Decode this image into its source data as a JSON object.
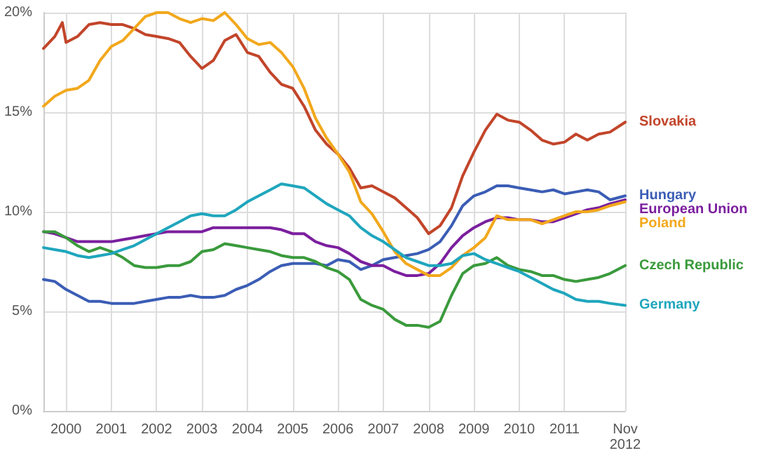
{
  "chart_data": {
    "type": "line",
    "x": [
      "2000-01",
      "2000-04",
      "2000-07",
      "2000-10",
      "2001-01",
      "2001-04",
      "2001-07",
      "2001-10",
      "2002-01",
      "2002-04",
      "2002-07",
      "2002-10",
      "2003-01",
      "2003-04",
      "2003-07",
      "2003-10",
      "2004-01",
      "2004-04",
      "2004-07",
      "2004-10",
      "2005-01",
      "2005-04",
      "2005-07",
      "2005-10",
      "2006-01",
      "2006-04",
      "2006-07",
      "2006-10",
      "2007-01",
      "2007-04",
      "2007-07",
      "2007-10",
      "2008-01",
      "2008-04",
      "2008-07",
      "2008-10",
      "2009-01",
      "2009-04",
      "2009-07",
      "2009-10",
      "2010-01",
      "2010-04",
      "2010-07",
      "2010-10",
      "2011-01",
      "2011-04",
      "2011-07",
      "2011-10",
      "2012-01",
      "2012-04",
      "2012-07",
      "2012-11"
    ],
    "series": [
      {
        "name": "Slovakia",
        "color": "#c2452a",
        "x": [
          "2000-01",
          "2000-04",
          "2000-06",
          "2000-07",
          "2000-10",
          "2001-01",
          "2001-04",
          "2001-07",
          "2001-10",
          "2002-01",
          "2002-04",
          "2002-07",
          "2002-10",
          "2003-01",
          "2003-04",
          "2003-07",
          "2003-10",
          "2004-01",
          "2004-04",
          "2004-07",
          "2004-10",
          "2005-01",
          "2005-04",
          "2005-07",
          "2005-10",
          "2006-01",
          "2006-04",
          "2006-07",
          "2006-10",
          "2007-01",
          "2007-04",
          "2007-07",
          "2007-10",
          "2008-01",
          "2008-04",
          "2008-07",
          "2008-10",
          "2009-01",
          "2009-04",
          "2009-07",
          "2009-10",
          "2010-01",
          "2010-04",
          "2010-07",
          "2010-10",
          "2011-01",
          "2011-04",
          "2011-07",
          "2011-10",
          "2012-01",
          "2012-04",
          "2012-07",
          "2012-11"
        ],
        "values": [
          18.2,
          18.8,
          19.5,
          18.5,
          18.8,
          19.4,
          19.5,
          19.4,
          19.4,
          19.2,
          18.9,
          18.8,
          18.7,
          18.5,
          17.8,
          17.2,
          17.6,
          18.6,
          18.9,
          18.0,
          17.8,
          17.0,
          16.4,
          16.2,
          15.3,
          14.1,
          13.4,
          12.9,
          12.2,
          11.2,
          11.3,
          11.0,
          10.7,
          10.2,
          9.7,
          8.9,
          9.3,
          10.2,
          11.8,
          13.0,
          14.1,
          14.9,
          14.6,
          14.5,
          14.1,
          13.6,
          13.4,
          13.5,
          13.9,
          13.6,
          13.9,
          14.0,
          14.5
        ]
      },
      {
        "name": "Hungary",
        "color": "#3b5db5",
        "values": [
          6.6,
          6.5,
          6.1,
          5.8,
          5.5,
          5.5,
          5.4,
          5.4,
          5.4,
          5.5,
          5.6,
          5.7,
          5.7,
          5.8,
          5.7,
          5.7,
          5.8,
          6.1,
          6.3,
          6.6,
          7.0,
          7.3,
          7.4,
          7.4,
          7.4,
          7.3,
          7.6,
          7.5,
          7.1,
          7.3,
          7.6,
          7.7,
          7.8,
          7.9,
          8.1,
          8.5,
          9.3,
          10.3,
          10.8,
          11.0,
          11.3,
          11.3,
          11.2,
          11.1,
          11.0,
          11.1,
          10.9,
          11.0,
          11.1,
          11.0,
          10.6,
          10.8
        ]
      },
      {
        "name": "European Union",
        "color": "#7b1f9e",
        "values": [
          9.0,
          8.9,
          8.7,
          8.5,
          8.5,
          8.5,
          8.5,
          8.6,
          8.7,
          8.8,
          8.9,
          9.0,
          9.0,
          9.0,
          9.0,
          9.2,
          9.2,
          9.2,
          9.2,
          9.2,
          9.2,
          9.1,
          8.9,
          8.9,
          8.5,
          8.3,
          8.2,
          7.9,
          7.5,
          7.3,
          7.3,
          7.0,
          6.8,
          6.8,
          6.9,
          7.4,
          8.2,
          8.8,
          9.2,
          9.5,
          9.7,
          9.7,
          9.6,
          9.6,
          9.5,
          9.5,
          9.7,
          9.9,
          10.1,
          10.2,
          10.4,
          10.6
        ]
      },
      {
        "name": "Poland",
        "color": "#f2a81c",
        "values": [
          15.3,
          15.8,
          16.1,
          16.2,
          16.6,
          17.6,
          18.3,
          18.6,
          19.2,
          19.8,
          20.0,
          20.0,
          19.7,
          19.5,
          19.7,
          19.6,
          20.0,
          19.4,
          18.7,
          18.4,
          18.5,
          18.0,
          17.3,
          16.2,
          14.7,
          13.7,
          12.9,
          12.0,
          10.5,
          9.9,
          9.0,
          8.0,
          7.4,
          7.1,
          6.8,
          6.8,
          7.2,
          7.8,
          8.2,
          8.7,
          9.8,
          9.6,
          9.6,
          9.6,
          9.4,
          9.6,
          9.8,
          10.0,
          10.0,
          10.1,
          10.3,
          10.5
        ]
      },
      {
        "name": "Czech Republic",
        "color": "#3a9a3c",
        "values": [
          9.0,
          9.0,
          8.7,
          8.3,
          8.0,
          8.2,
          8.0,
          7.7,
          7.3,
          7.2,
          7.2,
          7.3,
          7.3,
          7.5,
          8.0,
          8.1,
          8.4,
          8.3,
          8.2,
          8.1,
          8.0,
          7.8,
          7.7,
          7.7,
          7.5,
          7.2,
          7.0,
          6.6,
          5.6,
          5.3,
          5.1,
          4.6,
          4.3,
          4.3,
          4.2,
          4.5,
          5.8,
          6.9,
          7.3,
          7.4,
          7.7,
          7.3,
          7.1,
          7.0,
          6.8,
          6.8,
          6.6,
          6.5,
          6.6,
          6.7,
          6.9,
          7.3
        ]
      },
      {
        "name": "Germany",
        "color": "#1fa6bd",
        "values": [
          8.2,
          8.1,
          8.0,
          7.8,
          7.7,
          7.8,
          7.9,
          8.1,
          8.3,
          8.6,
          8.9,
          9.2,
          9.5,
          9.8,
          9.9,
          9.8,
          9.8,
          10.1,
          10.5,
          10.8,
          11.1,
          11.4,
          11.3,
          11.2,
          10.8,
          10.4,
          10.1,
          9.8,
          9.2,
          8.8,
          8.5,
          8.1,
          7.7,
          7.5,
          7.3,
          7.3,
          7.4,
          7.8,
          7.9,
          7.6,
          7.4,
          7.2,
          7.0,
          6.7,
          6.4,
          6.1,
          5.9,
          5.6,
          5.5,
          5.5,
          5.4,
          5.3
        ]
      }
    ],
    "xlim": [
      "2000-01",
      "2012-11"
    ],
    "xticks": [
      {
        "value": "2000-07",
        "label": "2000"
      },
      {
        "value": "2001-07",
        "label": "2001"
      },
      {
        "value": "2002-07",
        "label": "2002"
      },
      {
        "value": "2003-07",
        "label": "2003"
      },
      {
        "value": "2004-07",
        "label": "2004"
      },
      {
        "value": "2005-07",
        "label": "2005"
      },
      {
        "value": "2006-07",
        "label": "2006"
      },
      {
        "value": "2007-07",
        "label": "2007"
      },
      {
        "value": "2008-07",
        "label": "2008"
      },
      {
        "value": "2009-07",
        "label": "2009"
      },
      {
        "value": "2010-07",
        "label": "2010"
      },
      {
        "value": "2011-07",
        "label": "2011"
      },
      {
        "value": "2012-11",
        "label": "Nov\n2012"
      }
    ],
    "ylim": [
      0,
      20
    ],
    "yticks": [
      {
        "value": 0,
        "label": "0%"
      },
      {
        "value": 5,
        "label": "5%"
      },
      {
        "value": 10,
        "label": "10%"
      },
      {
        "value": 15,
        "label": "15%"
      },
      {
        "value": 20,
        "label": "20%"
      }
    ],
    "grid": true,
    "legend": false,
    "marker": "none",
    "line_style": "solid"
  }
}
